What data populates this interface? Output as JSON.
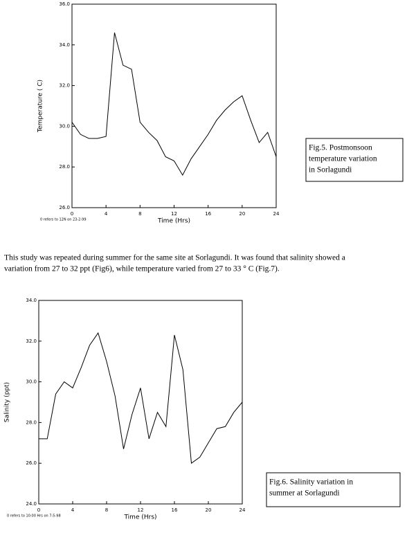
{
  "chart_data": [
    {
      "type": "line",
      "ylabel": "Temperature ( C)",
      "xlabel": "Time (Hrs)",
      "note": "0 refers to 12N on 23-2-99",
      "caption": [
        "Fig.5. Postmonsoon",
        "temperature variation",
        "in Sorlagundi"
      ],
      "color": "#000000",
      "x": [
        0,
        1,
        2,
        3,
        4,
        5,
        6,
        7,
        8,
        9,
        10,
        11,
        12,
        13,
        14,
        15,
        16,
        17,
        18,
        19,
        20,
        21,
        22,
        23,
        24
      ],
      "values": [
        30.2,
        29.6,
        29.4,
        29.4,
        29.5,
        34.6,
        33.0,
        32.8,
        30.2,
        29.7,
        29.3,
        28.5,
        28.3,
        27.6,
        28.4,
        29.0,
        29.6,
        30.3,
        30.8,
        31.2,
        31.5,
        30.3,
        29.2,
        29.7,
        28.5
      ],
      "xlim": [
        0,
        24
      ],
      "xticks": [
        0,
        4,
        8,
        12,
        16,
        20,
        24
      ],
      "ylim": [
        26,
        36
      ],
      "yticks": [
        {
          "value": 26,
          "label": "26.0"
        },
        {
          "value": 28,
          "label": "28.0"
        },
        {
          "value": 30,
          "label": "30.0"
        },
        {
          "value": 32,
          "label": "32.0"
        },
        {
          "value": 34,
          "label": "34.0"
        },
        {
          "value": 36,
          "label": "36.0"
        }
      ]
    },
    {
      "type": "line",
      "ylabel": "Salinity (ppt)",
      "xlabel": "Time (Hrs)",
      "note": "0 refers to 10:00 Hrs on 7-5-98",
      "caption": [
        "Fig.6. Salinity variation in",
        "summer at Sorlagundi"
      ],
      "color": "#000000",
      "x": [
        0,
        1,
        2,
        3,
        4,
        5,
        6,
        7,
        8,
        9,
        10,
        11,
        12,
        13,
        14,
        15,
        16,
        17,
        18,
        19,
        20,
        21,
        22,
        23,
        24
      ],
      "values": [
        27.2,
        27.2,
        29.4,
        30.0,
        29.7,
        30.7,
        31.8,
        32.4,
        31.0,
        29.3,
        26.7,
        28.4,
        29.7,
        27.2,
        28.5,
        27.8,
        32.3,
        30.6,
        26.0,
        26.3,
        27.0,
        27.7,
        27.8,
        28.5,
        29.0
      ],
      "xlim": [
        0,
        24
      ],
      "xticks": [
        0,
        4,
        8,
        12,
        16,
        20,
        24
      ],
      "ylim": [
        24,
        34
      ],
      "yticks": [
        {
          "value": 24,
          "label": "24.0"
        },
        {
          "value": 26,
          "label": "26.0"
        },
        {
          "value": 28,
          "label": "28.0"
        },
        {
          "value": 30,
          "label": "30.0"
        },
        {
          "value": 32,
          "label": "32.0"
        },
        {
          "value": 34,
          "label": "34.0"
        }
      ]
    }
  ],
  "paragraph": [
    "This study was repeated during summer for the same site at Sorlagundi. It was found that salinity showed a",
    "variation from 27 to 32 ppt (Fig6),  while temperature varied from 27 to 33 ° C  (Fig.7)."
  ]
}
